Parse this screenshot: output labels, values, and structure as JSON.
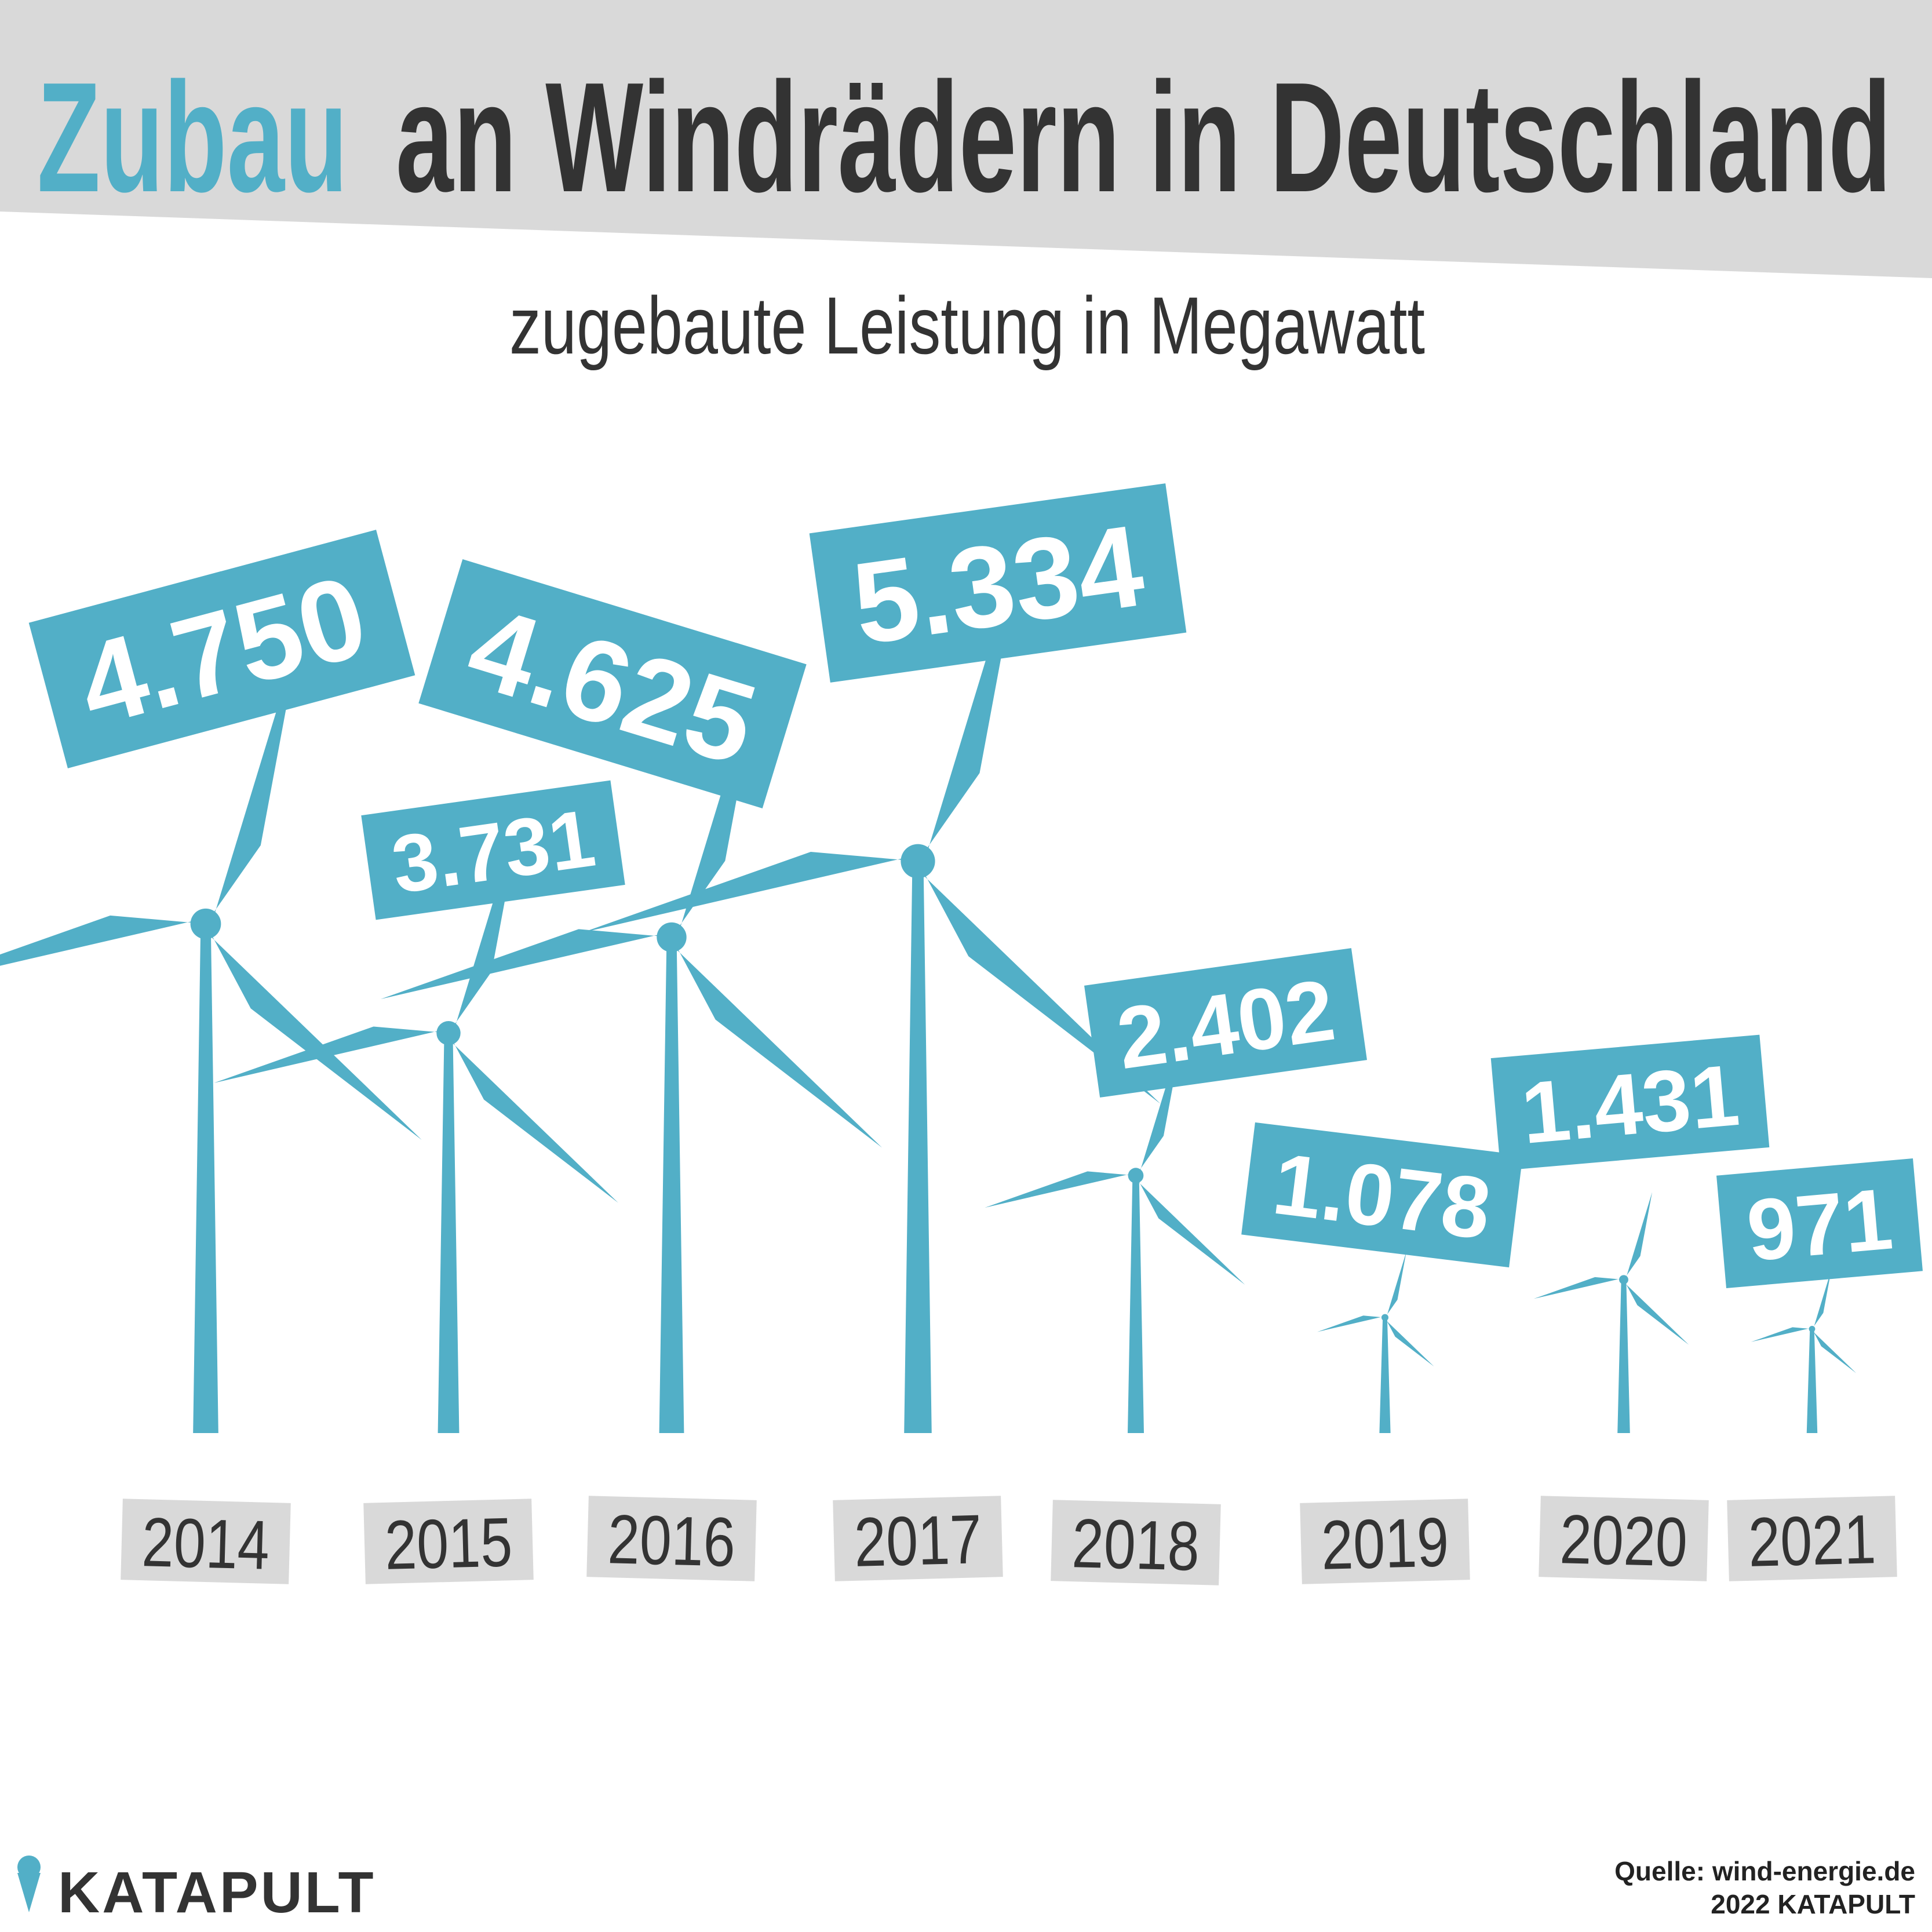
{
  "chart_data": {
    "type": "turbine",
    "title": {
      "highlight": "Zubau",
      "rest": "an Windrädern in Deutschland"
    },
    "subtitle": "zugebaute Leistung in Megawatt",
    "categories": [
      "2014",
      "2015",
      "2016",
      "2017",
      "2018",
      "2019",
      "2020",
      "2021"
    ],
    "values": [
      4750,
      3731,
      4625,
      5334,
      2402,
      1078,
      1431,
      971
    ],
    "value_labels": [
      "4.750",
      "3.731",
      "4.625",
      "5.334",
      "2.402",
      "1.078",
      "1.431",
      "971"
    ],
    "color": "#52afc7",
    "source": "Quelle: wind-energie.de",
    "copyright": "2022 KATAPULT",
    "brand": "KATAPULT"
  }
}
